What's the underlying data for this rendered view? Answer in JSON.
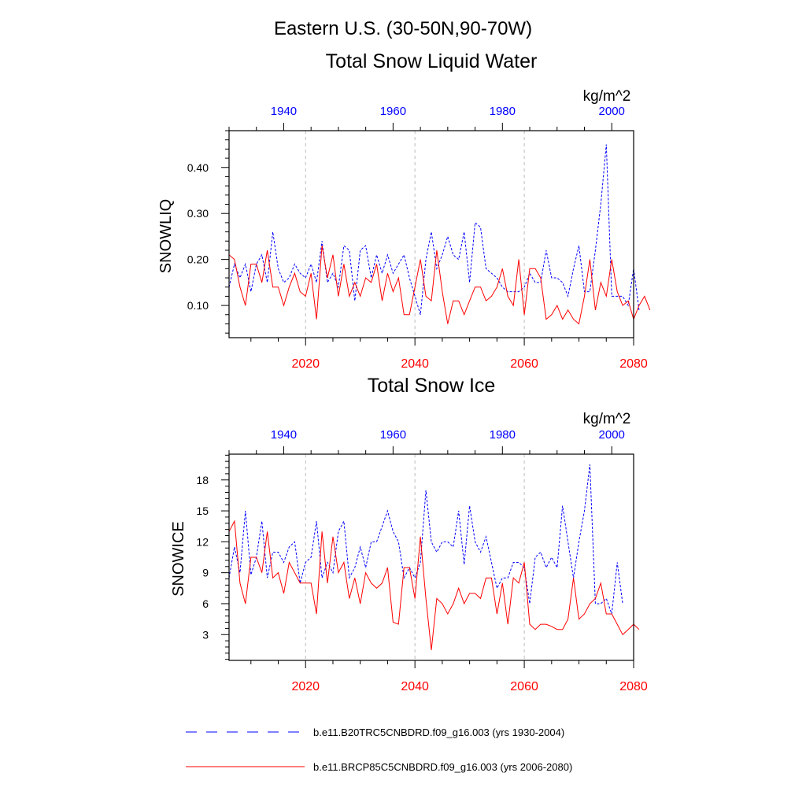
{
  "figure_title": "Eastern U.S. (30-50N,90-70W)",
  "legend": {
    "historical": {
      "label": "b.e11.B20TRC5CNBDRD.f09_g16.003 (yrs 1930-2004)",
      "color": "#0000ff",
      "style": "dashed"
    },
    "future": {
      "label": "b.e11.BRCP85C5CNBDRD.f09_g16.003 (yrs 2006-2080)",
      "color": "#ff0000",
      "style": "solid"
    }
  },
  "colors": {
    "historical": "#0000ff",
    "future": "#ff0000",
    "axis": "#000000",
    "grid": "#bbbbbb"
  },
  "chart_data": [
    {
      "type": "line",
      "title": "Total Snow Liquid Water",
      "ylabel": "SNOWLIQ",
      "units": "kg/m^2",
      "ylim": [
        0.03,
        0.48
      ],
      "yticks": [
        0.1,
        0.2,
        0.3,
        0.4
      ],
      "ytick_labels": [
        "0.10",
        "0.20",
        "0.30",
        "0.40"
      ],
      "bottom_axis": {
        "range": [
          2006,
          2080
        ],
        "ticks": [
          2020,
          2040,
          2060,
          2080
        ],
        "color": "#ff0000"
      },
      "top_axis": {
        "range": [
          1930,
          2004
        ],
        "ticks": [
          1940,
          1960,
          1980,
          2000
        ],
        "color": "#0000ff"
      },
      "gridlines": [
        2020,
        2040,
        2060
      ],
      "series": [
        {
          "name": "historical",
          "axis": "top",
          "start_year": 1930,
          "color": "#0000ff",
          "style": "dashed",
          "values": [
            0.14,
            0.19,
            0.16,
            0.19,
            0.13,
            0.19,
            0.21,
            0.15,
            0.26,
            0.18,
            0.15,
            0.16,
            0.19,
            0.17,
            0.16,
            0.19,
            0.15,
            0.24,
            0.15,
            0.17,
            0.14,
            0.23,
            0.22,
            0.11,
            0.22,
            0.23,
            0.16,
            0.21,
            0.17,
            0.21,
            0.17,
            0.19,
            0.21,
            0.16,
            0.12,
            0.08,
            0.2,
            0.26,
            0.18,
            0.21,
            0.25,
            0.21,
            0.2,
            0.26,
            0.15,
            0.28,
            0.27,
            0.18,
            0.17,
            0.16,
            0.14,
            0.13,
            0.13,
            0.13,
            0.14,
            0.17,
            0.15,
            0.15,
            0.22,
            0.16,
            0.16,
            0.15,
            0.12,
            0.18,
            0.23,
            0.13,
            0.13,
            0.22,
            0.32,
            0.45,
            0.12,
            0.12,
            0.12,
            0.1,
            0.18,
            0.09
          ]
        },
        {
          "name": "future",
          "axis": "bottom",
          "start_year": 2006,
          "color": "#ff0000",
          "style": "solid",
          "values": [
            0.21,
            0.2,
            0.14,
            0.1,
            0.19,
            0.19,
            0.15,
            0.22,
            0.14,
            0.14,
            0.1,
            0.14,
            0.17,
            0.13,
            0.12,
            0.17,
            0.07,
            0.23,
            0.16,
            0.21,
            0.12,
            0.19,
            0.12,
            0.15,
            0.12,
            0.16,
            0.15,
            0.19,
            0.11,
            0.17,
            0.13,
            0.16,
            0.08,
            0.08,
            0.14,
            0.2,
            0.12,
            0.11,
            0.22,
            0.13,
            0.06,
            0.11,
            0.11,
            0.08,
            0.11,
            0.14,
            0.14,
            0.11,
            0.12,
            0.14,
            0.18,
            0.12,
            0.1,
            0.2,
            0.08,
            0.18,
            0.18,
            0.16,
            0.07,
            0.08,
            0.1,
            0.07,
            0.09,
            0.07,
            0.06,
            0.12,
            0.2,
            0.09,
            0.15,
            0.12,
            0.2,
            0.13,
            0.1,
            0.11,
            0.07,
            0.1,
            0.12,
            0.09
          ]
        }
      ]
    },
    {
      "type": "line",
      "title": "Total Snow Ice",
      "ylabel": "SNOWICE",
      "units": "kg/m^2",
      "ylim": [
        0.5,
        20.5
      ],
      "yticks": [
        3,
        6,
        9,
        12,
        15,
        18
      ],
      "ytick_labels": [
        "3",
        "6",
        "9",
        "12",
        "15",
        "18"
      ],
      "bottom_axis": {
        "range": [
          2006,
          2080
        ],
        "ticks": [
          2020,
          2040,
          2060,
          2080
        ],
        "color": "#ff0000"
      },
      "top_axis": {
        "range": [
          1930,
          2004
        ],
        "ticks": [
          1940,
          1960,
          1980,
          2000
        ],
        "color": "#0000ff"
      },
      "gridlines": [
        2020,
        2040,
        2060
      ],
      "series": [
        {
          "name": "historical",
          "axis": "top",
          "start_year": 1930,
          "color": "#0000ff",
          "style": "dashed",
          "values": [
            8.5,
            11.5,
            9.0,
            15.0,
            8.8,
            10.5,
            14.0,
            8.5,
            11.0,
            11.0,
            10.0,
            11.5,
            12.0,
            8.0,
            10.0,
            10.5,
            14.0,
            8.5,
            10.0,
            9.0,
            13.0,
            14.0,
            8.5,
            9.5,
            11.5,
            9.5,
            12.0,
            12.0,
            13.5,
            15.0,
            13.0,
            12.0,
            8.5,
            9.5,
            8.5,
            10.0,
            17.0,
            12.0,
            11.0,
            12.0,
            12.0,
            11.5,
            15.0,
            9.8,
            15.5,
            12.0,
            11.0,
            12.5,
            10.0,
            7.5,
            8.5,
            8.5,
            10.0,
            10.0,
            9.5,
            6.0,
            10.5,
            11.0,
            9.5,
            10.5,
            9.5,
            15.5,
            12.0,
            8.5,
            12.0,
            15.0,
            19.5,
            6.0,
            6.0,
            6.5,
            5.0,
            10.0,
            6.0
          ]
        },
        {
          "name": "future",
          "axis": "bottom",
          "start_year": 2006,
          "color": "#ff0000",
          "style": "solid",
          "values": [
            13.0,
            14.0,
            8.0,
            6.0,
            10.5,
            10.5,
            9.0,
            13.0,
            8.5,
            9.0,
            7.0,
            10.0,
            9.0,
            8.0,
            8.0,
            8.0,
            5.0,
            13.0,
            8.0,
            12.5,
            9.0,
            10.0,
            6.5,
            8.5,
            6.0,
            9.0,
            8.0,
            7.5,
            8.0,
            9.5,
            4.2,
            4.0,
            9.5,
            9.5,
            6.5,
            12.5,
            6.5,
            1.5,
            6.5,
            6.0,
            5.0,
            6.0,
            7.5,
            6.0,
            7.0,
            7.0,
            6.5,
            8.5,
            8.5,
            5.0,
            8.0,
            4.0,
            8.5,
            8.0,
            10.0,
            4.0,
            3.5,
            4.0,
            4.0,
            3.8,
            3.5,
            3.5,
            4.5,
            8.5,
            4.5,
            5.0,
            6.0,
            6.5,
            8.0,
            5.0,
            5.0,
            4.0,
            3.0,
            3.5,
            4.0,
            3.5
          ]
        }
      ]
    }
  ]
}
